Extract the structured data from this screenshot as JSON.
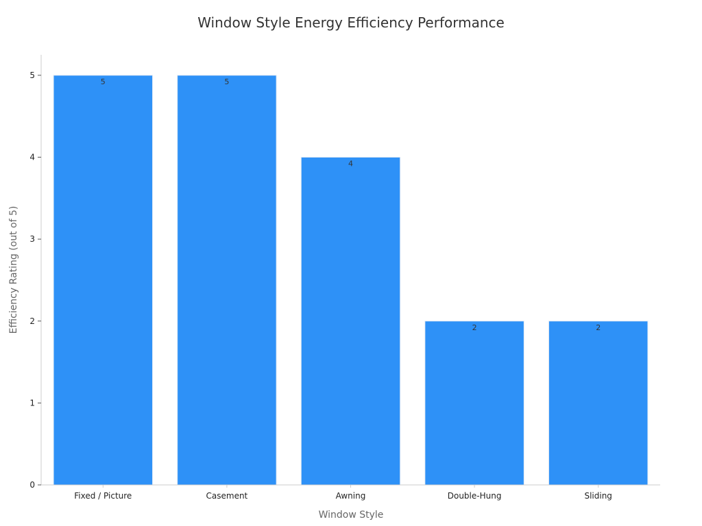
{
  "chart_data": {
    "type": "bar",
    "title": "Window Style Energy Efficiency Performance",
    "xlabel": "Window Style",
    "ylabel": "Efficiency Rating (out of 5)",
    "categories": [
      "Fixed / Picture",
      "Casement",
      "Awning",
      "Double-Hung",
      "Sliding"
    ],
    "values": [
      5,
      5,
      4,
      2,
      2
    ],
    "data_labels": [
      "5",
      "5",
      "4",
      "2",
      "2"
    ],
    "ylim": [
      0,
      5.25
    ],
    "yticks": [
      0,
      1,
      2,
      3,
      4,
      5
    ],
    "grid": false,
    "legend": "none",
    "colors": {
      "bar": "#2e91f7",
      "bar_edge": "#e3ebf5",
      "axis": "#cccccc",
      "tick_text": "#222222",
      "label_text": "#666666",
      "title_text": "#333333",
      "data_label_text": "#333333"
    }
  }
}
